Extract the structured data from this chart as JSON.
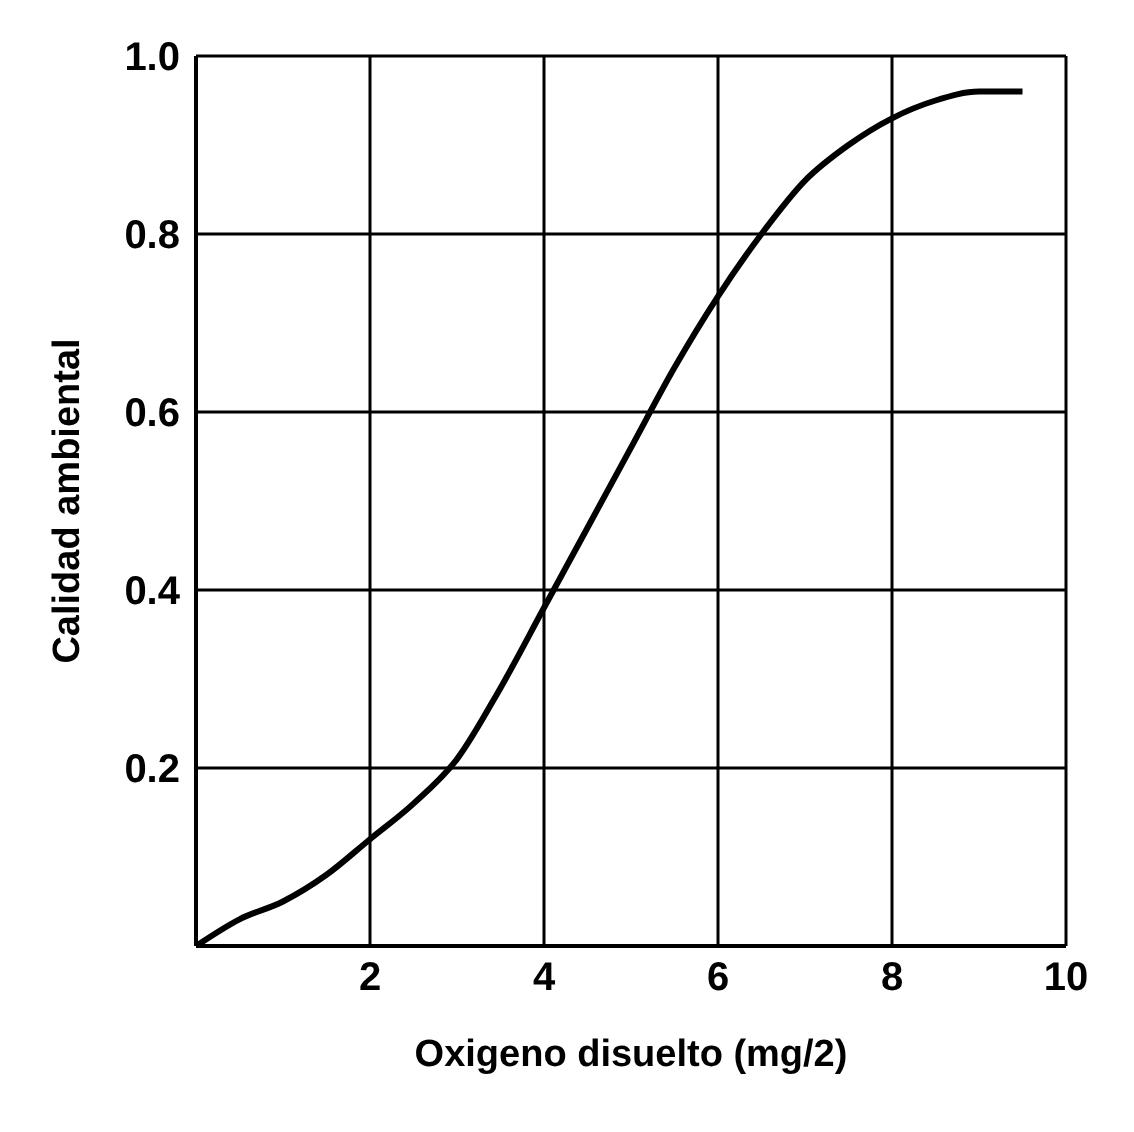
{
  "chart_data": {
    "type": "line",
    "xlabel": "Oxigeno disuelto (mg/2)",
    "ylabel": "Calidad ambiental",
    "x": [
      0,
      0.5,
      1,
      1.5,
      2,
      2.5,
      3,
      3.5,
      4,
      4.5,
      5,
      5.5,
      6,
      6.5,
      7,
      7.5,
      8,
      8.5,
      9,
      9.5
    ],
    "series": [
      {
        "color": "#000000",
        "values": [
          0,
          0.03,
          0.05,
          0.08,
          0.12,
          0.16,
          0.21,
          0.29,
          0.38,
          0.47,
          0.56,
          0.65,
          0.73,
          0.8,
          0.86,
          0.9,
          0.93,
          0.95,
          0.96,
          0.96
        ]
      }
    ],
    "xlim": [
      0,
      10
    ],
    "xticks": [
      {
        "value": 0,
        "label": null
      },
      2,
      4,
      6,
      8,
      10
    ],
    "ylim": [
      0,
      1
    ],
    "yticks": [
      {
        "value": 0,
        "label": null
      },
      0.2,
      0.4,
      0.6,
      0.8,
      {
        "value": 1,
        "label": "1.0"
      }
    ],
    "grid": true,
    "marker": "none",
    "line_style": "solid"
  }
}
